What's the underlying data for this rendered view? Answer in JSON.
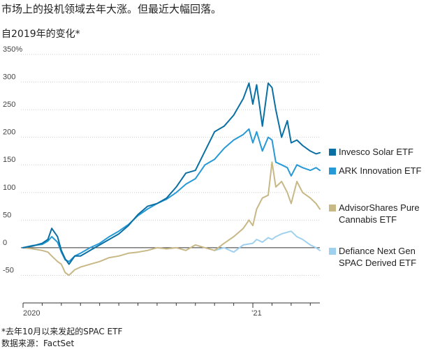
{
  "chart_data": {
    "type": "line",
    "title": "市场上的投机领域去年大涨。但最近大幅回落。",
    "subtitle": "自2019年的变化*",
    "ylabel": "",
    "xlabel": "",
    "ylim": [
      -100,
      350
    ],
    "yticks": [
      {
        "value": 350,
        "label": "350%"
      },
      {
        "value": 300,
        "label": "300"
      },
      {
        "value": 250,
        "label": "250"
      },
      {
        "value": 200,
        "label": "200"
      },
      {
        "value": 150,
        "label": "150"
      },
      {
        "value": 100,
        "label": "100"
      },
      {
        "value": 50,
        "label": "50"
      },
      {
        "value": 0,
        "label": "0"
      },
      {
        "value": -50,
        "label": "-50"
      },
      {
        "value": -100,
        "label": ""
      }
    ],
    "xlim": [
      0,
      15.5
    ],
    "x_unit": "months since Jan 2020",
    "xticks": [
      {
        "value": 0,
        "label": "2020"
      },
      {
        "value": 12,
        "label": "’21"
      }
    ],
    "series": [
      {
        "name": "Invesco Solar ETF",
        "color": "#0a6fa3",
        "x": [
          0,
          0.5,
          1,
          1.3,
          1.5,
          1.8,
          2.0,
          2.2,
          2.4,
          2.7,
          3.0,
          3.5,
          4.0,
          4.5,
          5.0,
          5.5,
          6.0,
          6.5,
          7.0,
          7.5,
          8.0,
          8.5,
          9.0,
          9.5,
          10.0,
          10.5,
          11.0,
          11.5,
          11.8,
          12.0,
          12.2,
          12.5,
          12.8,
          13.0,
          13.2,
          13.5,
          13.8,
          14.0,
          14.3,
          14.6,
          15.0,
          15.3,
          15.5
        ],
        "values": [
          0,
          3,
          8,
          15,
          35,
          20,
          -5,
          -20,
          -30,
          -15,
          -15,
          -5,
          5,
          15,
          25,
          40,
          60,
          75,
          80,
          90,
          110,
          135,
          140,
          175,
          210,
          220,
          240,
          270,
          298,
          260,
          295,
          220,
          298,
          290,
          250,
          200,
          230,
          190,
          195,
          185,
          175,
          170,
          172
        ]
      },
      {
        "name": "ARK Innovation ETF",
        "color": "#2699d6",
        "x": [
          0,
          0.5,
          1,
          1.3,
          1.5,
          1.8,
          2.0,
          2.2,
          2.4,
          2.7,
          3.0,
          3.5,
          4.0,
          4.5,
          5.0,
          5.5,
          6.0,
          6.5,
          7.0,
          7.5,
          8.0,
          8.5,
          9.0,
          9.5,
          10.0,
          10.5,
          11.0,
          11.5,
          11.8,
          12.0,
          12.2,
          12.5,
          12.8,
          13.0,
          13.2,
          13.5,
          13.8,
          14.0,
          14.3,
          14.6,
          15.0,
          15.3,
          15.5
        ],
        "values": [
          0,
          4,
          6,
          12,
          20,
          10,
          -8,
          -22,
          -25,
          -15,
          -10,
          0,
          8,
          20,
          30,
          42,
          58,
          70,
          80,
          88,
          100,
          115,
          125,
          150,
          160,
          180,
          195,
          205,
          215,
          190,
          210,
          175,
          200,
          195,
          155,
          150,
          145,
          130,
          150,
          145,
          140,
          145,
          140
        ]
      },
      {
        "name": "AdvisorShares Pure\nCannabis ETF",
        "color": "#c7b886",
        "x": [
          0,
          0.5,
          1,
          1.3,
          1.5,
          1.8,
          2.0,
          2.2,
          2.4,
          2.7,
          3.0,
          3.5,
          4.0,
          4.5,
          5.0,
          5.5,
          6.0,
          6.5,
          7.0,
          7.5,
          8.0,
          8.5,
          9.0,
          9.5,
          10.0,
          10.5,
          11.0,
          11.5,
          11.8,
          12.0,
          12.2,
          12.5,
          12.8,
          13.0,
          13.2,
          13.5,
          13.8,
          14.0,
          14.3,
          14.6,
          15.0,
          15.3,
          15.5
        ],
        "values": [
          0,
          -2,
          -5,
          -8,
          -15,
          -25,
          -30,
          -45,
          -50,
          -40,
          -35,
          -30,
          -25,
          -18,
          -15,
          -10,
          -8,
          -5,
          0,
          -2,
          0,
          -5,
          5,
          0,
          -5,
          8,
          20,
          35,
          50,
          40,
          70,
          90,
          95,
          155,
          110,
          120,
          100,
          80,
          120,
          100,
          90,
          80,
          70
        ]
      },
      {
        "name": "Defiance Next Gen\nSPAC Derived ETF",
        "color": "#9fd0ee",
        "x": [
          10.0,
          10.5,
          11.0,
          11.5,
          12.0,
          12.2,
          12.5,
          12.8,
          13.0,
          13.2,
          13.5,
          13.8,
          14.0,
          14.3,
          14.6,
          15.0,
          15.3,
          15.5
        ],
        "values": [
          -5,
          0,
          -8,
          5,
          8,
          15,
          10,
          18,
          15,
          20,
          25,
          28,
          30,
          20,
          15,
          5,
          0,
          -5
        ]
      }
    ]
  },
  "legend": [
    {
      "label": "Invesco Solar ETF",
      "color": "#0a6fa3"
    },
    {
      "label": "ARK Innovation ETF",
      "color": "#2699d6"
    },
    {
      "label": "AdvisorShares Pure\nCannabis ETF",
      "color": "#c7b886"
    },
    {
      "label": "Defiance Next Gen\nSPAC Derived ETF",
      "color": "#9fd0ee"
    }
  ],
  "footnote": "*去年10月以来发起的SPAC ETF",
  "source": "数据来源：FactSet"
}
